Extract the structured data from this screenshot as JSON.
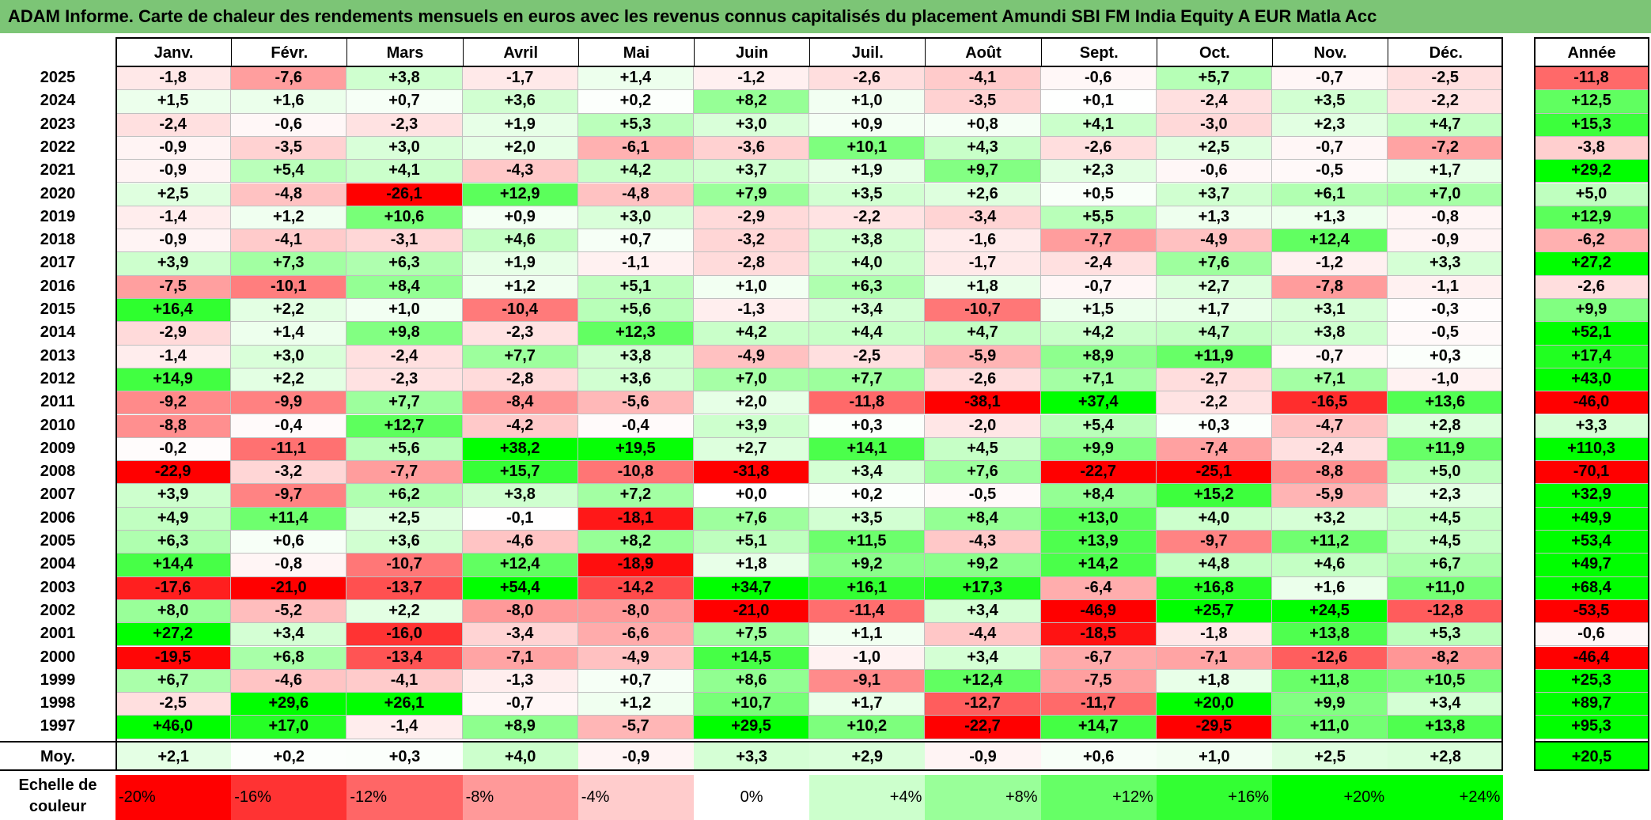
{
  "title": "ADAM Informe. Carte de chaleur des rendements mensuels en euros avec les revenus connus capitalisés du placement Amundi SBI FM India Equity A EUR Matla Acc",
  "chart_data": {
    "type": "heatmap",
    "months": [
      "Janv.",
      "Févr.",
      "Mars",
      "Avril",
      "Mai",
      "Juin",
      "Juil.",
      "Août",
      "Sept.",
      "Oct.",
      "Nov.",
      "Déc."
    ],
    "year_header": "Année",
    "avg_label": "Moy.",
    "rows": [
      {
        "year": "2025",
        "values": [
          "-1,8",
          "-7,6",
          "+3,8",
          "-1,7",
          "+1,4",
          "-1,2",
          "-2,6",
          "-4,1",
          "-0,6",
          "+5,7",
          "-0,7",
          "-2,5"
        ],
        "annual": "-11,8"
      },
      {
        "year": "2024",
        "values": [
          "+1,5",
          "+1,6",
          "+0,7",
          "+3,6",
          "+0,2",
          "+8,2",
          "+1,0",
          "-3,5",
          "+0,1",
          "-2,4",
          "+3,5",
          "-2,2"
        ],
        "annual": "+12,5"
      },
      {
        "year": "2023",
        "values": [
          "-2,4",
          "-0,6",
          "-2,3",
          "+1,9",
          "+5,3",
          "+3,0",
          "+0,9",
          "+0,8",
          "+4,1",
          "-3,0",
          "+2,3",
          "+4,7"
        ],
        "annual": "+15,3"
      },
      {
        "year": "2022",
        "values": [
          "-0,9",
          "-3,5",
          "+3,0",
          "+2,0",
          "-6,1",
          "-3,6",
          "+10,1",
          "+4,3",
          "-2,6",
          "+2,5",
          "-0,7",
          "-7,2"
        ],
        "annual": "-3,8"
      },
      {
        "year": "2021",
        "values": [
          "-0,9",
          "+5,4",
          "+4,1",
          "-4,3",
          "+4,2",
          "+3,7",
          "+1,9",
          "+9,7",
          "+2,3",
          "-0,6",
          "-0,5",
          "+1,7"
        ],
        "annual": "+29,2"
      },
      {
        "year": "2020",
        "values": [
          "+2,5",
          "-4,8",
          "-26,1",
          "+12,9",
          "-4,8",
          "+7,9",
          "+3,5",
          "+2,6",
          "+0,5",
          "+3,7",
          "+6,1",
          "+7,0"
        ],
        "annual": "+5,0"
      },
      {
        "year": "2019",
        "values": [
          "-1,4",
          "+1,2",
          "+10,6",
          "+0,9",
          "+3,0",
          "-2,9",
          "-2,2",
          "-3,4",
          "+5,5",
          "+1,3",
          "+1,3",
          "-0,8"
        ],
        "annual": "+12,9"
      },
      {
        "year": "2018",
        "values": [
          "-0,9",
          "-4,1",
          "-3,1",
          "+4,6",
          "+0,7",
          "-3,2",
          "+3,8",
          "-1,6",
          "-7,7",
          "-4,9",
          "+12,4",
          "-0,9"
        ],
        "annual": "-6,2"
      },
      {
        "year": "2017",
        "values": [
          "+3,9",
          "+7,3",
          "+6,3",
          "+1,9",
          "-1,1",
          "-2,8",
          "+4,0",
          "-1,7",
          "-2,4",
          "+7,6",
          "-1,2",
          "+3,3"
        ],
        "annual": "+27,2"
      },
      {
        "year": "2016",
        "values": [
          "-7,5",
          "-10,1",
          "+8,4",
          "+1,2",
          "+5,1",
          "+1,0",
          "+6,3",
          "+1,8",
          "-0,7",
          "+2,7",
          "-7,8",
          "-1,1"
        ],
        "annual": "-2,6"
      },
      {
        "year": "2015",
        "values": [
          "+16,4",
          "+2,2",
          "+1,0",
          "-10,4",
          "+5,6",
          "-1,3",
          "+3,4",
          "-10,7",
          "+1,5",
          "+1,7",
          "+3,1",
          "-0,3"
        ],
        "annual": "+9,9"
      },
      {
        "year": "2014",
        "values": [
          "-2,9",
          "+1,4",
          "+9,8",
          "-2,3",
          "+12,3",
          "+4,2",
          "+4,4",
          "+4,7",
          "+4,2",
          "+4,7",
          "+3,8",
          "-0,5"
        ],
        "annual": "+52,1"
      },
      {
        "year": "2013",
        "values": [
          "-1,4",
          "+3,0",
          "-2,4",
          "+7,7",
          "+3,8",
          "-4,9",
          "-2,5",
          "-5,9",
          "+8,9",
          "+11,9",
          "-0,7",
          "+0,3"
        ],
        "annual": "+17,4"
      },
      {
        "year": "2012",
        "values": [
          "+14,9",
          "+2,2",
          "-2,3",
          "-2,8",
          "+3,6",
          "+7,0",
          "+7,7",
          "-2,6",
          "+7,1",
          "-2,7",
          "+7,1",
          "-1,0"
        ],
        "annual": "+43,0"
      },
      {
        "year": "2011",
        "values": [
          "-9,2",
          "-9,9",
          "+7,7",
          "-8,4",
          "-5,6",
          "+2,0",
          "-11,8",
          "-38,1",
          "+37,4",
          "-2,2",
          "-16,5",
          "+13,6"
        ],
        "annual": "-46,0"
      },
      {
        "year": "2010",
        "values": [
          "-8,8",
          "-0,4",
          "+12,7",
          "-4,2",
          "-0,4",
          "+3,9",
          "+0,3",
          "-2,0",
          "+5,4",
          "+0,3",
          "-4,7",
          "+2,8"
        ],
        "annual": "+3,3"
      },
      {
        "year": "2009",
        "values": [
          "-0,2",
          "-11,1",
          "+5,6",
          "+38,2",
          "+19,5",
          "+2,7",
          "+14,1",
          "+4,5",
          "+9,9",
          "-7,4",
          "-2,4",
          "+11,9"
        ],
        "annual": "+110,3"
      },
      {
        "year": "2008",
        "values": [
          "-22,9",
          "-3,2",
          "-7,7",
          "+15,7",
          "-10,8",
          "-31,8",
          "+3,4",
          "+7,6",
          "-22,7",
          "-25,1",
          "-8,8",
          "+5,0"
        ],
        "annual": "-70,1"
      },
      {
        "year": "2007",
        "values": [
          "+3,9",
          "-9,7",
          "+6,2",
          "+3,8",
          "+7,2",
          "+0,0",
          "+0,2",
          "-0,5",
          "+8,4",
          "+15,2",
          "-5,9",
          "+2,3"
        ],
        "annual": "+32,9"
      },
      {
        "year": "2006",
        "values": [
          "+4,9",
          "+11,4",
          "+2,5",
          "-0,1",
          "-18,1",
          "+7,6",
          "+3,5",
          "+8,4",
          "+13,0",
          "+4,0",
          "+3,2",
          "+4,5"
        ],
        "annual": "+49,9"
      },
      {
        "year": "2005",
        "values": [
          "+6,3",
          "+0,6",
          "+3,6",
          "-4,6",
          "+8,2",
          "+5,1",
          "+11,5",
          "-4,3",
          "+13,9",
          "-9,7",
          "+11,2",
          "+4,5"
        ],
        "annual": "+53,4"
      },
      {
        "year": "2004",
        "values": [
          "+14,4",
          "-0,8",
          "-10,7",
          "+12,4",
          "-18,9",
          "+1,8",
          "+9,2",
          "+9,2",
          "+14,2",
          "+4,8",
          "+4,6",
          "+6,7"
        ],
        "annual": "+49,7"
      },
      {
        "year": "2003",
        "values": [
          "-17,6",
          "-21,0",
          "-13,7",
          "+54,4",
          "-14,2",
          "+34,7",
          "+16,1",
          "+17,3",
          "-6,4",
          "+16,8",
          "+1,6",
          "+11,0"
        ],
        "annual": "+68,4"
      },
      {
        "year": "2002",
        "values": [
          "+8,0",
          "-5,2",
          "+2,2",
          "-8,0",
          "-8,0",
          "-21,0",
          "-11,4",
          "+3,4",
          "-46,9",
          "+25,7",
          "+24,5",
          "-12,8"
        ],
        "annual": "-53,5"
      },
      {
        "year": "2001",
        "values": [
          "+27,2",
          "+3,4",
          "-16,0",
          "-3,4",
          "-6,6",
          "+7,5",
          "+1,1",
          "-4,4",
          "-18,5",
          "-1,8",
          "+13,8",
          "+5,3"
        ],
        "annual": "-0,6"
      },
      {
        "year": "2000",
        "values": [
          "-19,5",
          "+6,8",
          "-13,4",
          "-7,1",
          "-4,9",
          "+14,5",
          "-1,0",
          "+3,4",
          "-6,7",
          "-7,1",
          "-12,6",
          "-8,2"
        ],
        "annual": "-46,4"
      },
      {
        "year": "1999",
        "values": [
          "+6,7",
          "-4,6",
          "-4,1",
          "-1,3",
          "+0,7",
          "+8,6",
          "-9,1",
          "+12,4",
          "-7,5",
          "+1,8",
          "+11,8",
          "+10,5"
        ],
        "annual": "+25,3"
      },
      {
        "year": "1998",
        "values": [
          "-2,5",
          "+29,6",
          "+26,1",
          "-0,7",
          "+1,2",
          "+10,7",
          "+1,7",
          "-12,7",
          "-11,7",
          "+20,0",
          "+9,9",
          "+3,4"
        ],
        "annual": "+89,7"
      },
      {
        "year": "1997",
        "values": [
          "+46,0",
          "+17,0",
          "-1,4",
          "+8,9",
          "-5,7",
          "+29,5",
          "+10,2",
          "-22,7",
          "+14,7",
          "-29,5",
          "+11,0",
          "+13,8"
        ],
        "annual": "+95,3"
      }
    ],
    "averages": [
      "+2,1",
      "+0,2",
      "+0,3",
      "+4,0",
      "-0,9",
      "+3,3",
      "+2,9",
      "-0,9",
      "+0,6",
      "+1,0",
      "+2,5",
      "+2,8"
    ],
    "average_annual": "+20,5",
    "color_scale_label": "Echelle de couleur",
    "color_scale": [
      {
        "label": "-20%",
        "value": -20,
        "color": "#ff0000"
      },
      {
        "label": "-16%",
        "value": -16,
        "color": "#ff3333"
      },
      {
        "label": "-12%",
        "value": -12,
        "color": "#ff6666"
      },
      {
        "label": "-8%",
        "value": -8,
        "color": "#ff9999"
      },
      {
        "label": "-4%",
        "value": -4,
        "color": "#ffcccc"
      },
      {
        "label": "0%",
        "value": 0,
        "color": "#ffffff"
      },
      {
        "label": "+4%",
        "value": 4,
        "color": "#ccffcc"
      },
      {
        "label": "+8%",
        "value": 8,
        "color": "#99ff99"
      },
      {
        "label": "+12%",
        "value": 12,
        "color": "#66ff66"
      },
      {
        "label": "+16%",
        "value": 16,
        "color": "#33ff33"
      },
      {
        "label": "+20%",
        "value": 20,
        "color": "#00ff00"
      },
      {
        "label": "+24%",
        "value": 24,
        "color": "#00ff00"
      }
    ]
  }
}
